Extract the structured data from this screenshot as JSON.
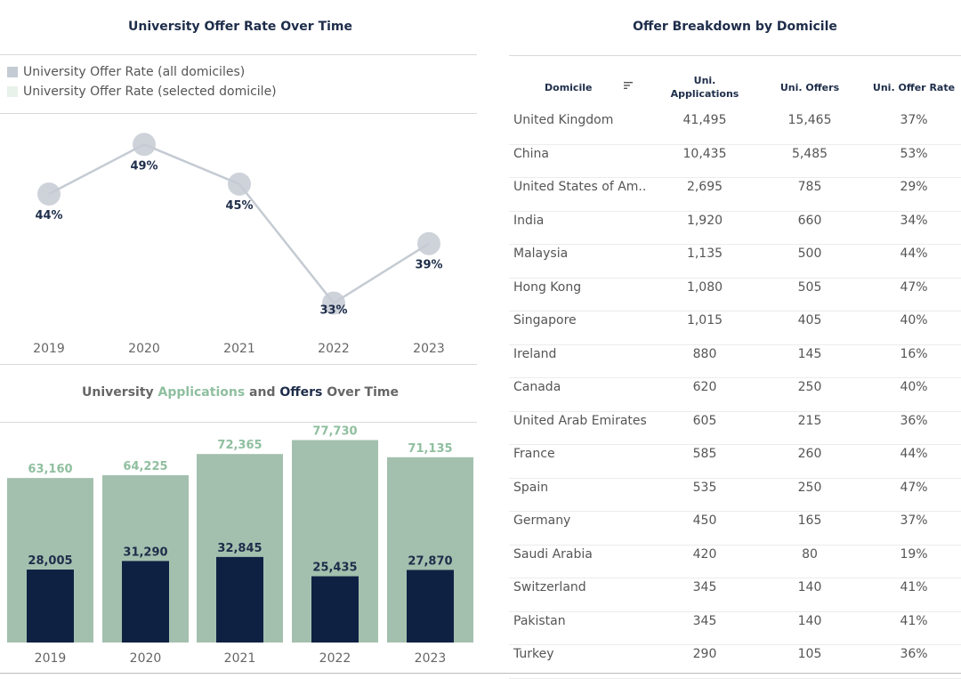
{
  "line_panel": {
    "title": "University Offer Rate Over Time",
    "legend": [
      {
        "label": "University Offer Rate (all domiciles)",
        "color": "#c5cbd3"
      },
      {
        "label": "University Offer Rate (selected domicile)",
        "color": "#e9f1eb"
      }
    ]
  },
  "bar_panel": {
    "title_prefix": "University ",
    "title_apps": "Applications",
    "title_mid": " and ",
    "title_offers": "Offers",
    "title_suffix": " Over Time"
  },
  "table_panel": {
    "title": "Offer Breakdown by Domicile",
    "headers": {
      "domicile": "Domicile",
      "apps_line1": "Uni.",
      "apps_line2": "Applications",
      "offers": "Uni. Offers",
      "rate": "Uni. Offer Rate"
    },
    "rows": [
      {
        "domicile": "United Kingdom",
        "apps": "41,495",
        "offers": "15,465",
        "rate": "37%"
      },
      {
        "domicile": "China",
        "apps": "10,435",
        "offers": "5,485",
        "rate": "53%"
      },
      {
        "domicile": "United States of Am..",
        "apps": "2,695",
        "offers": "785",
        "rate": "29%"
      },
      {
        "domicile": "India",
        "apps": "1,920",
        "offers": "660",
        "rate": "34%"
      },
      {
        "domicile": "Malaysia",
        "apps": "1,135",
        "offers": "500",
        "rate": "44%"
      },
      {
        "domicile": "Hong Kong",
        "apps": "1,080",
        "offers": "505",
        "rate": "47%"
      },
      {
        "domicile": "Singapore",
        "apps": "1,015",
        "offers": "405",
        "rate": "40%"
      },
      {
        "domicile": "Ireland",
        "apps": "880",
        "offers": "145",
        "rate": "16%"
      },
      {
        "domicile": "Canada",
        "apps": "620",
        "offers": "250",
        "rate": "40%"
      },
      {
        "domicile": "United Arab Emirates",
        "apps": "605",
        "offers": "215",
        "rate": "36%"
      },
      {
        "domicile": "France",
        "apps": "585",
        "offers": "260",
        "rate": "44%"
      },
      {
        "domicile": "Spain",
        "apps": "535",
        "offers": "250",
        "rate": "47%"
      },
      {
        "domicile": "Germany",
        "apps": "450",
        "offers": "165",
        "rate": "37%"
      },
      {
        "domicile": "Saudi Arabia",
        "apps": "420",
        "offers": "80",
        "rate": "19%"
      },
      {
        "domicile": "Switzerland",
        "apps": "345",
        "offers": "140",
        "rate": "41%"
      },
      {
        "domicile": "Pakistan",
        "apps": "345",
        "offers": "140",
        "rate": "41%"
      },
      {
        "domicile": "Turkey",
        "apps": "290",
        "offers": "105",
        "rate": "36%"
      }
    ]
  },
  "chart_data": [
    {
      "type": "line",
      "title": "University Offer Rate Over Time",
      "x": [
        "2019",
        "2020",
        "2021",
        "2022",
        "2023"
      ],
      "series": [
        {
          "name": "University Offer Rate (all domiciles)",
          "values": [
            44,
            49,
            45,
            33,
            39
          ],
          "labels": [
            "44%",
            "49%",
            "45%",
            "33%",
            "39%"
          ],
          "color": "#c5cbd3"
        }
      ],
      "ylim": [
        30,
        51
      ],
      "xlabel": "",
      "ylabel": ""
    },
    {
      "type": "bar",
      "title": "University Applications and Offers Over Time",
      "categories": [
        "2019",
        "2020",
        "2021",
        "2022",
        "2023"
      ],
      "series": [
        {
          "name": "Applications",
          "values": [
            63160,
            64225,
            72365,
            77730,
            71135
          ],
          "labels": [
            "63,160",
            "64,225",
            "72,365",
            "77,730",
            "71,135"
          ],
          "color": "#a3c0ae"
        },
        {
          "name": "Offers",
          "values": [
            28005,
            31290,
            32845,
            25435,
            27870
          ],
          "labels": [
            "28,005",
            "31,290",
            "32,845",
            "25,435",
            "27,870"
          ],
          "color": "#0f2143"
        }
      ],
      "ylim": [
        0,
        82000
      ],
      "xlabel": "",
      "ylabel": ""
    }
  ]
}
